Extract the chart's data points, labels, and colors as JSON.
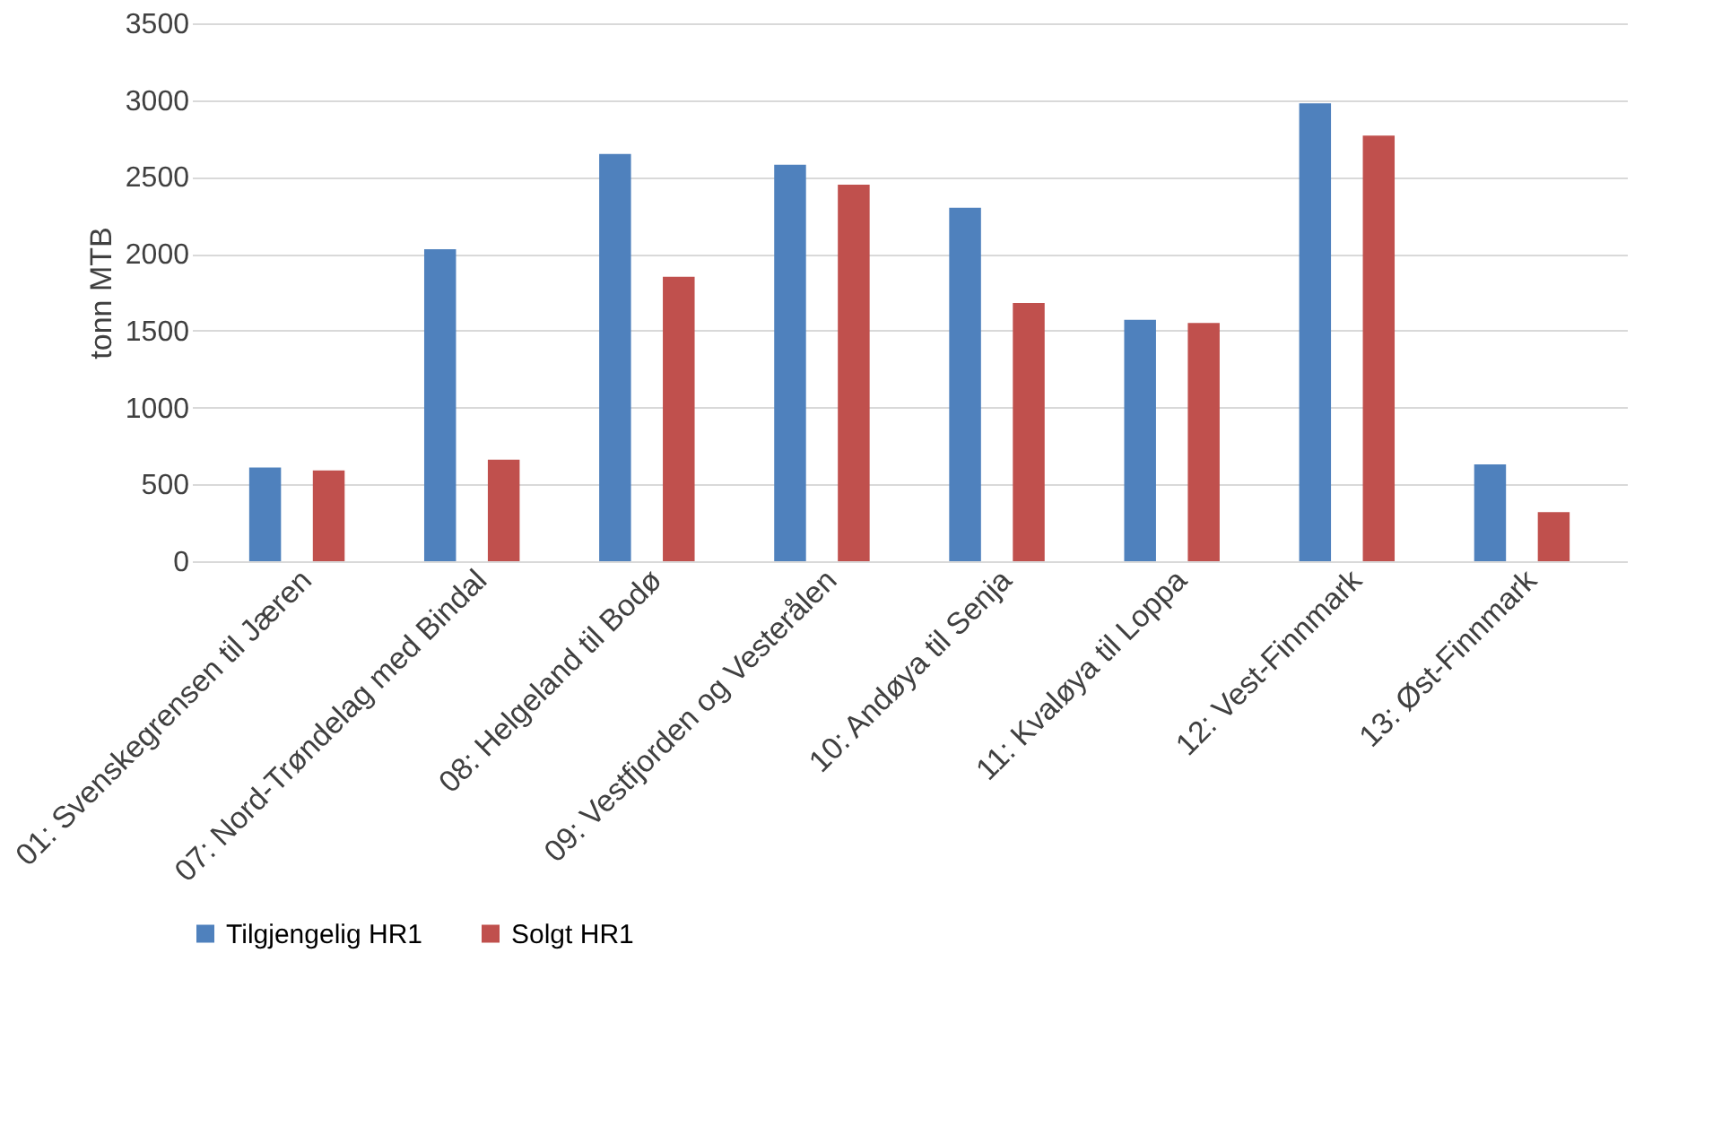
{
  "chart_data": {
    "type": "bar",
    "ylabel": "tonn MTB",
    "categories": [
      "01: Svenskegrensen til Jæren",
      "07: Nord-Trøndelag med Bindal",
      "08: Helgeland til Bodø",
      "09: Vestfjorden og Vesterålen",
      "10: Andøya til Senja",
      "11: Kvaløya til Loppa",
      "12: Vest-Finnmark",
      "13: Øst-Finnmark"
    ],
    "series": [
      {
        "name": "Tilgjengelig HR1",
        "color": "#4f81bd",
        "values": [
          610,
          2030,
          2650,
          2580,
          2300,
          1570,
          2980,
          630
        ]
      },
      {
        "name": "Solgt HR1",
        "color": "#c0504d",
        "values": [
          590,
          660,
          1850,
          2450,
          1680,
          1550,
          2770,
          320
        ]
      }
    ],
    "ylim": [
      0,
      3500
    ],
    "yticks": [
      0,
      500,
      1000,
      1500,
      2000,
      2500,
      3000,
      3500
    ],
    "grid": "y",
    "legend": "bottom"
  }
}
